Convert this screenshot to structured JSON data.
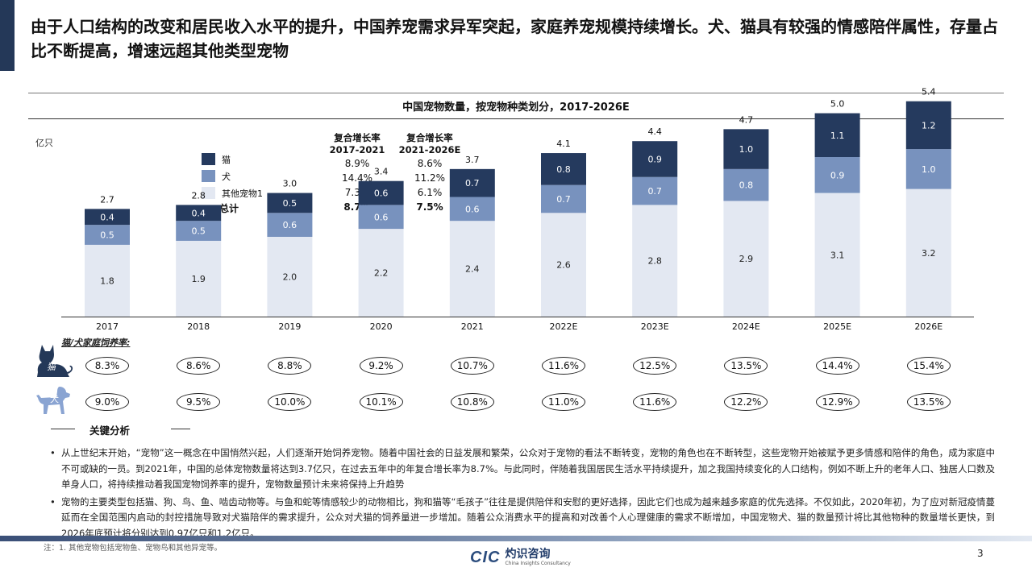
{
  "headline": "由于人口结构的改变和居民收入水平的提升，中国养宠需求异军突起，家庭养宠规模持续增长。犬、猫具有较强的情感陪伴属性，存量占比不断提高，增速远超其他类型宠物",
  "colors": {
    "cat": "#253a5e",
    "dog": "#7892be",
    "other": "#e3e8f2",
    "accent": "#243858"
  },
  "chart_data": {
    "type": "bar",
    "stacked": true,
    "title": "中国宠物数量，按宠物种类划分，2017-2026E",
    "ylabel": "亿只",
    "categories": [
      "2017",
      "2018",
      "2019",
      "2020",
      "2021",
      "2022E",
      "2023E",
      "2024E",
      "2025E",
      "2026E"
    ],
    "series": [
      {
        "name": "其他宠物1",
        "values": [
          1.8,
          1.9,
          2.0,
          2.2,
          2.4,
          2.6,
          2.8,
          2.9,
          3.1,
          3.2
        ]
      },
      {
        "name": "犬",
        "values": [
          0.5,
          0.5,
          0.6,
          0.6,
          0.6,
          0.7,
          0.7,
          0.8,
          0.9,
          1.0
        ]
      },
      {
        "name": "猫",
        "values": [
          0.4,
          0.4,
          0.5,
          0.6,
          0.7,
          0.8,
          0.9,
          1.0,
          1.1,
          1.2
        ]
      }
    ],
    "totals": [
      2.7,
      2.8,
      3.0,
      3.4,
      3.7,
      4.1,
      4.4,
      4.7,
      5.0,
      5.4
    ],
    "ylim": [
      0,
      6
    ],
    "grid": false
  },
  "legend": [
    {
      "key": "cat",
      "label": "猫"
    },
    {
      "key": "dog",
      "label": "犬"
    },
    {
      "key": "other",
      "label": "其他宠物1"
    }
  ],
  "cagr": {
    "header1": [
      "复合增长率",
      "2017-2021"
    ],
    "header2": [
      "复合增长率",
      "2021-2026E"
    ],
    "rows": [
      [
        "8.9%",
        "8.6%"
      ],
      [
        "14.4%",
        "11.2%"
      ],
      [
        "7.3%",
        "6.1%"
      ],
      [
        "8.7%",
        "7.5%"
      ]
    ],
    "total_label": "总计"
  },
  "ownership": {
    "title": "猫/犬家庭饲养率:",
    "cat_label": "猫",
    "dog_label": "犬",
    "cat": [
      "8.3%",
      "8.6%",
      "8.8%",
      "9.2%",
      "10.7%",
      "11.6%",
      "12.5%",
      "13.5%",
      "14.4%",
      "15.4%"
    ],
    "dog": [
      "9.0%",
      "9.5%",
      "10.0%",
      "10.1%",
      "10.8%",
      "11.0%",
      "11.6%",
      "12.2%",
      "12.9%",
      "13.5%"
    ]
  },
  "analysis": {
    "title": "关键分析",
    "bullets": [
      "从上世纪末开始，“宠物”这一概念在中国悄然兴起，人们逐渐开始饲养宠物。随着中国社会的日益发展和繁荣，公众对于宠物的看法不断转变，宠物的角色也在不断转型，这些宠物开始被赋予更多情感和陪伴的角色，成为家庭中不可或缺的一员。到2021年，中国的总体宠物数量将达到3.7亿只，在过去五年中的年复合增长率为8.7%。与此同时，伴随着我国居民生活水平持续提升，加之我国持续变化的人口结构，例如不断上升的老年人口、独居人口数及单身人口，将持续推动着我国宠物饲养率的提升，宠物数量预计未来将保持上升趋势",
      "宠物的主要类型包括猫、狗、鸟、鱼、啮齿动物等。与鱼和蛇等情感较少的动物相比，狗和猫等“毛孩子”往往是提供陪伴和安慰的更好选择，因此它们也成为越来越多家庭的优先选择。不仅如此，2020年初，为了应对新冠疫情蔓延而在全国范围内启动的封控措施导致对犬猫陪伴的需求提升，公众对犬猫的饲养量进一步增加。随着公众消费水平的提高和对改善个人心理健康的需求不断增加，中国宠物犬、猫的数量预计将比其他物种的数量增长更快，到2026年底预计将分别达到0.97亿只和1.2亿只。"
    ]
  },
  "footnote": "注：1. 其他宠物包括宠物鱼、宠物鸟和其他异宠等。",
  "page_number": "3",
  "logo": {
    "mark": "CIC",
    "cn": "灼识咨询",
    "en": "China Insights Consultancy"
  }
}
